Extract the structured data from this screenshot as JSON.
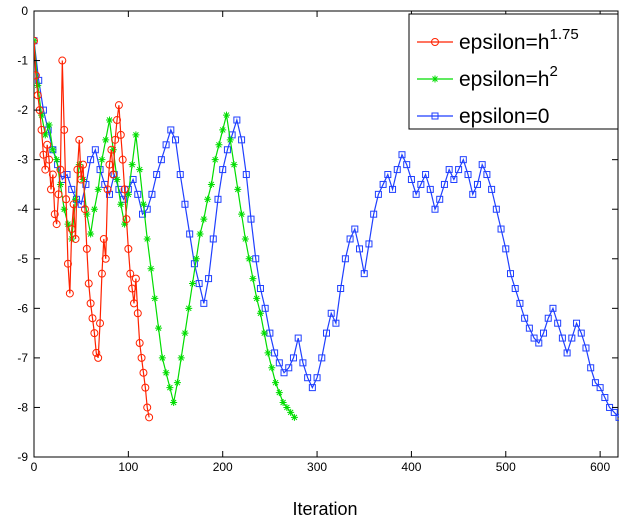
{
  "chart_data": {
    "type": "line",
    "xlabel": "Iteration",
    "ylabel": "",
    "xlim": [
      0,
      620
    ],
    "ylim": [
      -9,
      0
    ],
    "xticks": [
      0,
      100,
      200,
      300,
      400,
      500,
      600
    ],
    "yticks": [
      0,
      -1,
      -2,
      -3,
      -4,
      -5,
      -6,
      -7,
      -8,
      -9
    ],
    "grid": false,
    "legend_position": "top-right",
    "series": [
      {
        "name": "epsilon=h^1.75",
        "legend_base": "epsilon=h",
        "legend_sup": "1.75",
        "color": "#ff2200",
        "marker": "circle",
        "x": [
          0,
          2,
          4,
          6,
          8,
          10,
          12,
          14,
          16,
          18,
          20,
          22,
          24,
          26,
          28,
          30,
          32,
          34,
          36,
          38,
          40,
          42,
          44,
          46,
          48,
          50,
          52,
          54,
          56,
          58,
          60,
          62,
          64,
          66,
          68,
          70,
          72,
          74,
          76,
          78,
          80,
          82,
          84,
          86,
          88,
          90,
          92,
          94,
          96,
          98,
          100,
          102,
          104,
          106,
          108,
          110,
          112,
          114,
          116,
          118,
          120,
          122
        ],
        "y": [
          -0.6,
          -1.3,
          -1.7,
          -2.0,
          -2.4,
          -2.9,
          -3.2,
          -2.7,
          -3.0,
          -3.6,
          -3.3,
          -4.1,
          -4.3,
          -3.7,
          -3.2,
          -1.0,
          -2.4,
          -3.8,
          -5.1,
          -5.7,
          -4.4,
          -3.9,
          -4.6,
          -3.2,
          -2.6,
          -3.4,
          -3.1,
          -4.0,
          -4.8,
          -5.5,
          -5.9,
          -6.2,
          -6.5,
          -6.9,
          -7.0,
          -6.3,
          -5.3,
          -4.6,
          -5.0,
          -3.6,
          -3.1,
          -2.8,
          -3.3,
          -2.6,
          -2.2,
          -1.9,
          -2.5,
          -3.0,
          -3.6,
          -4.2,
          -4.8,
          -5.3,
          -5.6,
          -5.9,
          -5.4,
          -6.1,
          -6.7,
          -7.0,
          -7.3,
          -7.6,
          -8.0,
          -8.2
        ]
      },
      {
        "name": "epsilon=h^2",
        "legend_base": "epsilon=h",
        "legend_sup": "2",
        "color": "#00dd00",
        "marker": "star",
        "x": [
          0,
          4,
          8,
          12,
          16,
          20,
          24,
          28,
          32,
          36,
          40,
          44,
          48,
          52,
          56,
          60,
          64,
          68,
          72,
          76,
          80,
          84,
          88,
          92,
          96,
          100,
          104,
          108,
          112,
          116,
          120,
          124,
          128,
          132,
          136,
          140,
          144,
          148,
          152,
          156,
          160,
          164,
          168,
          172,
          176,
          180,
          184,
          188,
          192,
          196,
          200,
          204,
          208,
          212,
          216,
          220,
          224,
          228,
          232,
          236,
          240,
          244,
          248,
          252,
          256,
          260,
          264,
          268,
          272,
          276
        ],
        "y": [
          -0.6,
          -1.5,
          -2.1,
          -2.5,
          -2.3,
          -2.8,
          -3.0,
          -3.5,
          -4.0,
          -4.3,
          -4.6,
          -3.8,
          -3.1,
          -3.4,
          -4.1,
          -4.5,
          -4.0,
          -3.6,
          -3.0,
          -2.6,
          -2.2,
          -2.8,
          -3.4,
          -3.9,
          -4.3,
          -3.7,
          -3.1,
          -2.5,
          -3.2,
          -3.9,
          -4.6,
          -5.2,
          -5.8,
          -6.4,
          -7.0,
          -7.3,
          -7.6,
          -7.9,
          -7.5,
          -7.0,
          -6.5,
          -6.0,
          -5.5,
          -5.0,
          -4.5,
          -4.2,
          -3.8,
          -3.5,
          -3.0,
          -2.7,
          -2.4,
          -2.1,
          -2.6,
          -3.1,
          -3.6,
          -4.1,
          -4.6,
          -5.0,
          -5.4,
          -5.8,
          -6.1,
          -6.5,
          -6.9,
          -7.2,
          -7.5,
          -7.7,
          -7.9,
          -8.0,
          -8.1,
          -8.2
        ]
      },
      {
        "name": "epsilon=0",
        "legend_base": "epsilon=0",
        "legend_sup": "",
        "color": "#1f3fff",
        "marker": "square",
        "x": [
          0,
          5,
          10,
          15,
          20,
          25,
          30,
          35,
          40,
          45,
          50,
          55,
          60,
          65,
          70,
          75,
          80,
          85,
          90,
          95,
          100,
          105,
          110,
          115,
          120,
          125,
          130,
          135,
          140,
          145,
          150,
          155,
          160,
          165,
          170,
          175,
          180,
          185,
          190,
          195,
          200,
          205,
          210,
          215,
          220,
          225,
          230,
          235,
          240,
          245,
          250,
          255,
          260,
          265,
          270,
          275,
          280,
          285,
          290,
          295,
          300,
          305,
          310,
          315,
          320,
          325,
          330,
          335,
          340,
          345,
          350,
          355,
          360,
          365,
          370,
          375,
          380,
          385,
          390,
          395,
          400,
          405,
          410,
          415,
          420,
          425,
          430,
          435,
          440,
          445,
          450,
          455,
          460,
          465,
          470,
          475,
          480,
          485,
          490,
          495,
          500,
          505,
          510,
          515,
          520,
          525,
          530,
          535,
          540,
          545,
          550,
          555,
          560,
          565,
          570,
          575,
          580,
          585,
          590,
          595,
          600,
          605,
          610,
          615,
          620
        ],
        "y": [
          -0.6,
          -1.4,
          -2.0,
          -2.4,
          -2.8,
          -3.1,
          -3.4,
          -3.3,
          -3.6,
          -3.8,
          -3.9,
          -3.5,
          -3.0,
          -2.8,
          -3.2,
          -3.5,
          -3.7,
          -3.3,
          -3.6,
          -3.8,
          -3.6,
          -3.4,
          -3.7,
          -4.1,
          -4.0,
          -3.7,
          -3.3,
          -3.0,
          -2.7,
          -2.4,
          -2.6,
          -3.3,
          -3.9,
          -4.5,
          -5.1,
          -5.5,
          -5.9,
          -5.4,
          -4.6,
          -3.8,
          -3.2,
          -2.8,
          -2.5,
          -2.2,
          -2.6,
          -3.3,
          -4.2,
          -5.0,
          -5.6,
          -6.0,
          -6.5,
          -6.9,
          -7.1,
          -7.3,
          -7.2,
          -7.0,
          -6.6,
          -7.1,
          -7.4,
          -7.6,
          -7.4,
          -7.0,
          -6.5,
          -6.1,
          -6.3,
          -5.6,
          -5.0,
          -4.6,
          -4.4,
          -4.8,
          -5.3,
          -4.7,
          -4.1,
          -3.7,
          -3.5,
          -3.3,
          -3.6,
          -3.2,
          -2.9,
          -3.1,
          -3.4,
          -3.7,
          -3.5,
          -3.3,
          -3.6,
          -4.0,
          -3.8,
          -3.5,
          -3.2,
          -3.4,
          -3.2,
          -3.0,
          -3.3,
          -3.7,
          -3.5,
          -3.1,
          -3.3,
          -3.6,
          -4.0,
          -4.4,
          -4.8,
          -5.3,
          -5.6,
          -5.9,
          -6.2,
          -6.4,
          -6.6,
          -6.7,
          -6.5,
          -6.2,
          -6.0,
          -6.3,
          -6.6,
          -6.9,
          -6.6,
          -6.3,
          -6.5,
          -6.8,
          -7.2,
          -7.5,
          -7.6,
          -7.8,
          -8.0,
          -8.1,
          -8.2
        ]
      }
    ]
  }
}
